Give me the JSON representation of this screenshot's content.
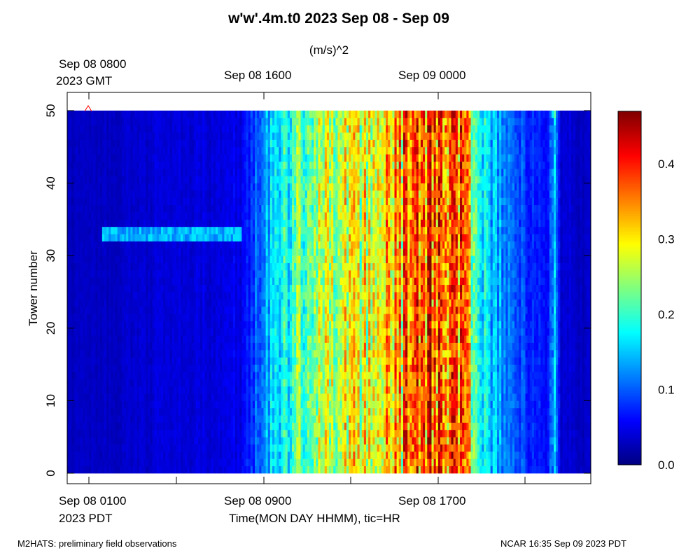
{
  "chart_data": {
    "type": "heatmap",
    "title": "w'w'.4m.t0 2023 Sep 08 - Sep 09",
    "units": "(m/s)^2",
    "ylabel": "Tower number",
    "xlabel": "Time(MON DAY HHMM), tic=HR",
    "y_ticks": [
      "0",
      "10",
      "20",
      "30",
      "40",
      "50"
    ],
    "ylim": [
      0,
      50
    ],
    "x_ticks_top": [
      {
        "line1": "Sep 08 0800",
        "line2": "2023 GMT"
      },
      {
        "line1": "Sep 08 1600",
        "line2": ""
      },
      {
        "line1": "Sep 09 0000",
        "line2": ""
      }
    ],
    "x_ticks_bottom": [
      {
        "line1": "Sep 08 0100",
        "line2": "2023 PDT"
      },
      {
        "line1": "Sep 08 0900",
        "line2": ""
      },
      {
        "line1": "Sep 08 1700",
        "line2": ""
      }
    ],
    "colorbar": {
      "min": 0.0,
      "max": 0.47,
      "ticks": [
        "0.0",
        "0.1",
        "0.2",
        "0.3",
        "0.4"
      ],
      "tick_values": [
        0.0,
        0.1,
        0.2,
        0.3,
        0.4
      ],
      "colormap": "jet"
    },
    "time_hours_pdt": [
      0,
      24
    ],
    "profile_hours_pdt": [
      0,
      2,
      4,
      6,
      8,
      9,
      10,
      11,
      12,
      13,
      14,
      15,
      16,
      17,
      18,
      19,
      20,
      21,
      22,
      22.3,
      22.6,
      24
    ],
    "profile_values": [
      0.03,
      0.03,
      0.04,
      0.04,
      0.05,
      0.12,
      0.19,
      0.24,
      0.26,
      0.27,
      0.28,
      0.31,
      0.35,
      0.4,
      0.36,
      0.18,
      0.12,
      0.08,
      0.06,
      0.16,
      0.04,
      0.03
    ],
    "anomalies": [
      {
        "tower": 33,
        "from_hour": 1.6,
        "to_hour": 8.0,
        "value": 0.14
      },
      {
        "tower": 50,
        "from_hour": 22.2,
        "to_hour": 22.4,
        "value": 0.18
      }
    ]
  },
  "footer": {
    "left": "M2HATS: preliminary field observations",
    "right": "NCAR 16:35 Sep 09 2023 PDT"
  }
}
